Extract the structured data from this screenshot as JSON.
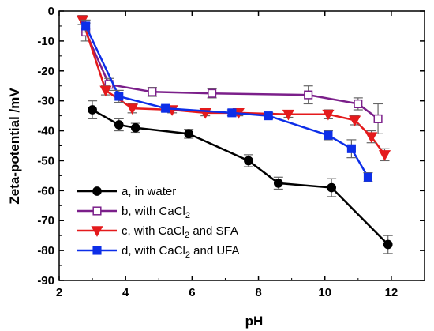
{
  "chart_data": {
    "type": "line",
    "xlabel": "pH",
    "ylabel": "Zeta-potential /mV",
    "xlim": [
      2,
      13
    ],
    "ylim": [
      -90,
      0
    ],
    "xticks": [
      2,
      4,
      6,
      8,
      10,
      12
    ],
    "yticks": [
      0,
      -10,
      -20,
      -30,
      -40,
      -50,
      -60,
      -70,
      -80,
      -90
    ],
    "legend_position": "bottom-left",
    "series": [
      {
        "name": "a, in water",
        "legend": {
          "prefix": "a, in water",
          "sub": "",
          "suffix": ""
        },
        "color": "#000000",
        "marker": "circle",
        "filled": true,
        "x": [
          3.0,
          3.8,
          4.3,
          5.9,
          7.7,
          8.6,
          10.2,
          11.9
        ],
        "y": [
          -33,
          -38,
          -39,
          -41,
          -50,
          -57.5,
          -59,
          -78
        ],
        "err": [
          3,
          2,
          1.5,
          1.5,
          2,
          2,
          3,
          3
        ]
      },
      {
        "name": "b, with CaCl2",
        "legend": {
          "prefix": "b, with CaCl",
          "sub": "2",
          "suffix": ""
        },
        "color": "#7b1f8a",
        "marker": "square",
        "filled": false,
        "x": [
          2.8,
          3.5,
          4.8,
          6.6,
          9.5,
          11.0,
          11.6
        ],
        "y": [
          -7,
          -24.5,
          -27,
          -27.5,
          -28,
          -31,
          -36
        ],
        "err": [
          3,
          2,
          1.5,
          1.5,
          3,
          2,
          5
        ]
      },
      {
        "name": "c, with CaCl2 and SFA",
        "legend": {
          "prefix": "c, with CaCl",
          "sub": "2",
          "suffix": " and SFA"
        },
        "color": "#e41a1c",
        "marker": "triangle-down",
        "filled": true,
        "x": [
          2.7,
          3.4,
          4.2,
          5.4,
          6.4,
          7.4,
          8.9,
          10.1,
          10.9,
          11.4,
          11.8
        ],
        "y": [
          -3,
          -26.5,
          -32.5,
          -33,
          -34,
          -34,
          -34.5,
          -34.5,
          -36.5,
          -42,
          -48
        ],
        "err": [
          1.5,
          1.5,
          1.5,
          1,
          1,
          1,
          1,
          1.5,
          1.5,
          2,
          2
        ]
      },
      {
        "name": "d, with CaCl2 and UFA",
        "legend": {
          "prefix": "d, with CaCl",
          "sub": "2",
          "suffix": " and UFA"
        },
        "color": "#0d2ee8",
        "marker": "square",
        "filled": true,
        "x": [
          2.8,
          3.8,
          5.2,
          7.2,
          8.3,
          10.1,
          10.8,
          11.3
        ],
        "y": [
          -5,
          -28.5,
          -32.5,
          -34,
          -35,
          -41.5,
          -46,
          -55.5
        ],
        "err": [
          2,
          2,
          1,
          1,
          1,
          1.5,
          3,
          1.5
        ]
      }
    ]
  }
}
